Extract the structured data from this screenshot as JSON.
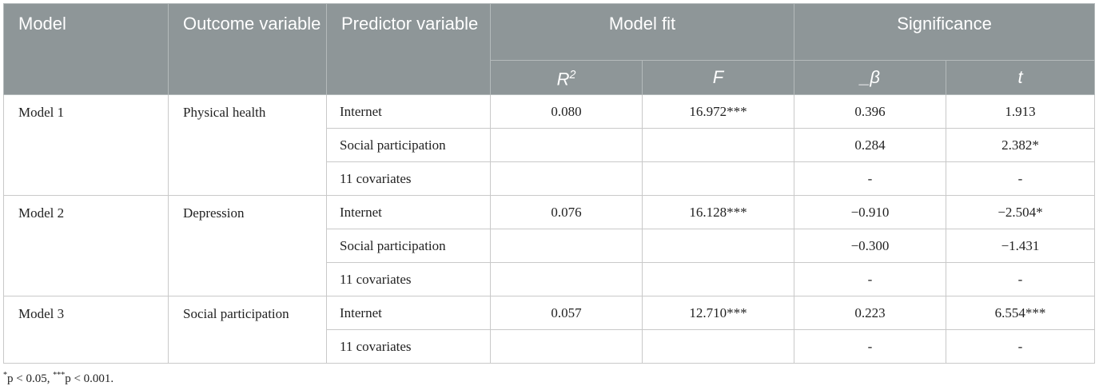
{
  "table": {
    "header": {
      "model": "Model",
      "outcome": "Outcome variable",
      "predictor": "Predictor variable",
      "model_fit": "Model fit",
      "significance": "Significance",
      "r2": {
        "base": "R",
        "sup": "2"
      },
      "f": "F",
      "beta": "_β",
      "t": "t"
    },
    "groups": [
      {
        "model": "Model 1",
        "outcome": "Physical health",
        "rows": [
          {
            "predictor": "Internet",
            "r2": "0.080",
            "f": "16.972***",
            "beta": "0.396",
            "t": "1.913"
          },
          {
            "predictor": "Social participation",
            "beta": "0.284",
            "t": "2.382*"
          },
          {
            "predictor": "11 covariates",
            "beta": "-",
            "t": "-"
          }
        ]
      },
      {
        "model": "Model 2",
        "outcome": "Depression",
        "rows": [
          {
            "predictor": "Internet",
            "r2": "0.076",
            "f": "16.128***",
            "beta": "−0.910",
            "t": "−2.504*"
          },
          {
            "predictor": "Social participation",
            "beta": "−0.300",
            "t": "−1.431"
          },
          {
            "predictor": "11 covariates",
            "beta": "-",
            "t": "-"
          }
        ]
      },
      {
        "model": "Model 3",
        "outcome": "Social participation",
        "rows": [
          {
            "predictor": "Internet",
            "r2": "0.057",
            "f": "12.710***",
            "beta": "0.223",
            "t": "6.554***"
          },
          {
            "predictor": "11 covariates",
            "beta": "-",
            "t": "-"
          }
        ]
      }
    ],
    "footnote": [
      {
        "sup": "*",
        "text": "p < 0.05, "
      },
      {
        "sup": "***",
        "text": "p < 0.001."
      }
    ]
  }
}
